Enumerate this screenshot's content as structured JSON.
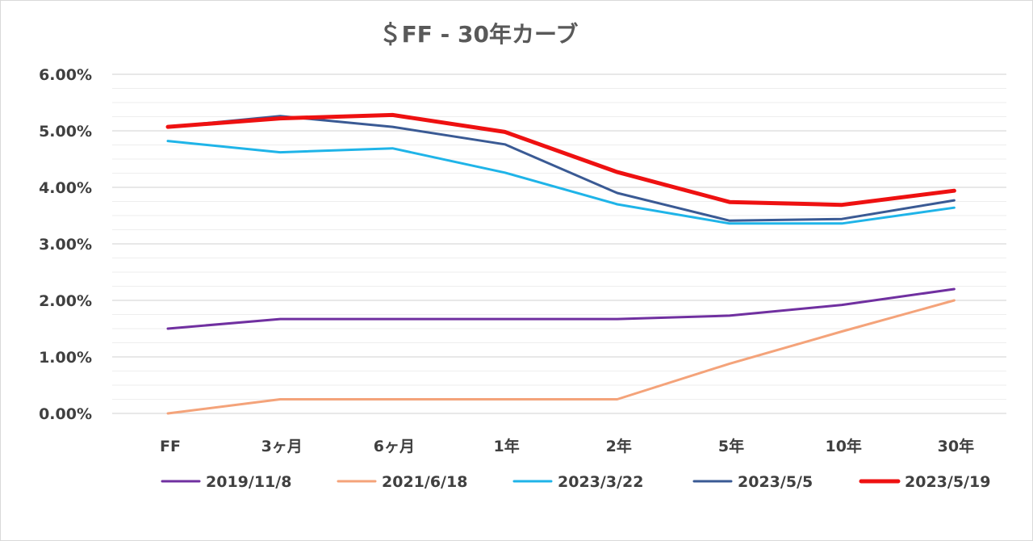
{
  "chart_data": {
    "type": "line",
    "title": "＄FF - 30年カーブ",
    "xlabel": "",
    "ylabel": "",
    "categories": [
      "FF",
      "3ヶ月",
      "6ヶ月",
      "1年",
      "2年",
      "5年",
      "10年",
      "30年"
    ],
    "ylim": [
      0,
      6
    ],
    "y_ticks": [
      "0.00%",
      "1.00%",
      "2.00%",
      "3.00%",
      "4.00%",
      "5.00%",
      "6.00%"
    ],
    "grid": true,
    "legend_position": "bottom",
    "series": [
      {
        "name": "2019/11/8",
        "color": "#7030a0",
        "values": [
          1.5,
          1.67,
          1.67,
          1.67,
          1.67,
          1.73,
          1.92,
          2.2
        ]
      },
      {
        "name": "2021/6/18",
        "color": "#f4a37a",
        "values": [
          0.0,
          0.25,
          0.25,
          0.25,
          0.25,
          0.88,
          1.45,
          2.0
        ]
      },
      {
        "name": "2023/3/22",
        "color": "#1fb4e8",
        "values": [
          4.82,
          4.62,
          4.69,
          4.26,
          3.7,
          3.36,
          3.36,
          3.64
        ]
      },
      {
        "name": "2023/5/5",
        "color": "#3a5a94",
        "values": [
          5.07,
          5.26,
          5.07,
          4.76,
          3.9,
          3.41,
          3.44,
          3.77
        ]
      },
      {
        "name": "2023/5/19",
        "color": "#ee1111",
        "values": [
          5.07,
          5.22,
          5.28,
          4.98,
          4.27,
          3.74,
          3.69,
          3.94
        ]
      }
    ]
  }
}
